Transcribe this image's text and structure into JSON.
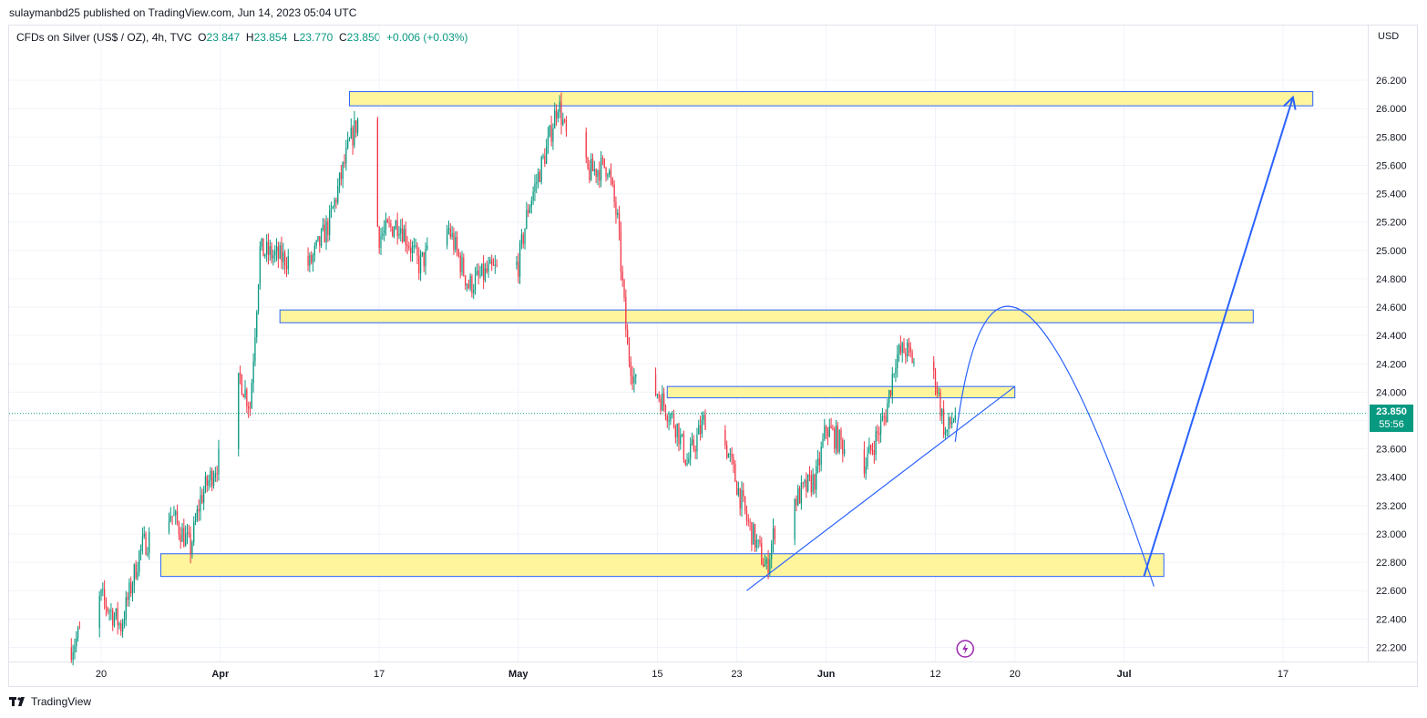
{
  "publisher": "sulaymanbd25 published on TradingView.com, Jun 14, 2023 05:04 UTC",
  "header": {
    "symbol": "CFDs on Silver (US$ / OZ), 4h, TVC",
    "o_label": "O",
    "o_value": "23.847",
    "h_label": "H",
    "h_value": "23.854",
    "l_label": "L",
    "l_value": "23.770",
    "c_label": "C",
    "c_value": "23.850",
    "change": "+0.006 (+0.03%)"
  },
  "currency": "USD",
  "price_tag": {
    "price": "23.850",
    "countdown": "55:56"
  },
  "footer": {
    "brand": "TradingView"
  },
  "colors": {
    "up": "#089981",
    "down": "#f23645",
    "zone_fill": "#ffeb3b",
    "zone_border": "#2962ff",
    "drawing": "#2962ff"
  },
  "chart_data": {
    "type": "candlestick",
    "ylim": [
      22.1,
      26.4
    ],
    "y_ticks": [
      22.2,
      22.4,
      22.6,
      22.8,
      23.0,
      23.2,
      23.4,
      23.6,
      23.8,
      24.0,
      24.2,
      24.4,
      24.6,
      24.8,
      25.0,
      25.2,
      25.4,
      25.6,
      25.8,
      26.0,
      26.2
    ],
    "y_tick_labels": [
      "22.200",
      "22.400",
      "22.600",
      "22.800",
      "23.000",
      "23.200",
      "23.400",
      "23.600",
      "23.800",
      "24.000",
      "24.200",
      "24.400",
      "24.600",
      "24.800",
      "25.000",
      "25.200",
      "25.400",
      "25.600",
      "25.800",
      "26.000",
      "26.200"
    ],
    "x_ticks": [
      {
        "label": "20",
        "date": "2023-03-20",
        "bold": false
      },
      {
        "label": "Apr",
        "date": "2023-04-01",
        "bold": true
      },
      {
        "label": "17",
        "date": "2023-04-17",
        "bold": false
      },
      {
        "label": "May",
        "date": "2023-05-01",
        "bold": true
      },
      {
        "label": "15",
        "date": "2023-05-15",
        "bold": false
      },
      {
        "label": "23",
        "date": "2023-05-23",
        "bold": false
      },
      {
        "label": "Jun",
        "date": "2023-06-01",
        "bold": true
      },
      {
        "label": "12",
        "date": "2023-06-12",
        "bold": false
      },
      {
        "label": "20",
        "date": "2023-06-20",
        "bold": false
      },
      {
        "label": "Jul",
        "date": "2023-07-01",
        "bold": true
      },
      {
        "label": "17",
        "date": "2023-07-17",
        "bold": false
      }
    ],
    "last_price": 23.85,
    "price_path": [
      [
        "2023-03-17",
        22.2
      ],
      [
        "2023-03-20",
        22.55
      ],
      [
        "2023-03-22",
        22.35
      ],
      [
        "2023-03-24",
        22.9
      ],
      [
        "2023-03-27",
        23.15
      ],
      [
        "2023-03-29",
        22.9
      ],
      [
        "2023-03-30",
        23.25
      ],
      [
        "2023-04-01",
        23.55
      ],
      [
        "2023-04-03",
        24.1
      ],
      [
        "2023-04-04",
        23.9
      ],
      [
        "2023-04-05",
        25.0
      ],
      [
        "2023-04-07",
        24.95
      ],
      [
        "2023-04-10",
        24.9
      ],
      [
        "2023-04-12",
        25.2
      ],
      [
        "2023-04-14",
        25.75
      ],
      [
        "2023-04-15",
        25.95
      ],
      [
        "2023-04-17",
        25.1
      ],
      [
        "2023-04-19",
        25.2
      ],
      [
        "2023-04-21",
        24.9
      ],
      [
        "2023-04-24",
        25.15
      ],
      [
        "2023-04-26",
        24.75
      ],
      [
        "2023-04-28",
        24.85
      ],
      [
        "2023-05-01",
        24.9
      ],
      [
        "2023-05-02",
        25.3
      ],
      [
        "2023-05-04",
        25.75
      ],
      [
        "2023-05-05",
        26.05
      ],
      [
        "2023-05-06",
        25.75
      ],
      [
        "2023-05-08",
        25.55
      ],
      [
        "2023-05-10",
        25.6
      ],
      [
        "2023-05-11",
        25.2
      ],
      [
        "2023-05-12",
        24.3
      ],
      [
        "2023-05-13",
        24.0
      ],
      [
        "2023-05-15",
        24.0
      ],
      [
        "2023-05-17",
        23.75
      ],
      [
        "2023-05-18",
        23.5
      ],
      [
        "2023-05-20",
        23.85
      ],
      [
        "2023-05-22",
        23.6
      ],
      [
        "2023-05-24",
        23.1
      ],
      [
        "2023-05-26",
        22.75
      ],
      [
        "2023-05-27",
        23.1
      ],
      [
        "2023-05-29",
        23.25
      ],
      [
        "2023-05-31",
        23.4
      ],
      [
        "2023-06-01",
        23.75
      ],
      [
        "2023-06-03",
        23.6
      ],
      [
        "2023-06-05",
        23.5
      ],
      [
        "2023-06-07",
        23.85
      ],
      [
        "2023-06-08",
        24.25
      ],
      [
        "2023-06-09",
        24.3
      ],
      [
        "2023-06-11",
        24.1
      ],
      [
        "2023-06-12",
        24.1
      ],
      [
        "2023-06-13",
        23.7
      ],
      [
        "2023-06-14",
        23.85
      ]
    ],
    "zones": [
      {
        "name": "resistance-top",
        "from": "2023-04-14",
        "to": "2023-07-20",
        "low": 26.02,
        "high": 26.12
      },
      {
        "name": "zone-24-5",
        "from": "2023-04-07",
        "to": "2023-07-14",
        "low": 24.49,
        "high": 24.58
      },
      {
        "name": "zone-24",
        "from": "2023-05-16",
        "to": "2023-06-20",
        "low": 23.96,
        "high": 24.04
      },
      {
        "name": "support-bottom",
        "from": "2023-03-26",
        "to": "2023-07-05",
        "low": 22.7,
        "high": 22.86
      }
    ],
    "trendline": [
      [
        "2023-05-24",
        22.6
      ],
      [
        "2023-06-20",
        24.04
      ]
    ],
    "projection_curve": [
      [
        "2023-06-14",
        23.65
      ],
      [
        "2023-06-21",
        24.56
      ],
      [
        "2023-07-04",
        22.63
      ]
    ],
    "projection_arrow": [
      [
        "2023-07-03",
        22.7
      ],
      [
        "2023-07-18",
        26.08
      ]
    ]
  }
}
